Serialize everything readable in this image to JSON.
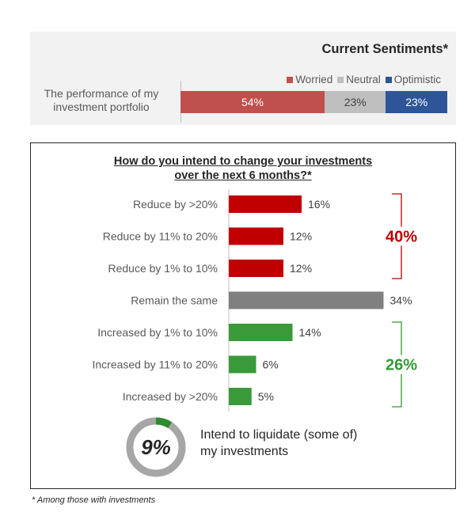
{
  "top": {
    "title": "Current Sentiments*",
    "row_label_line1": "The performance of my",
    "row_label_line2": "investment portfolio",
    "legend": [
      {
        "label": "Worried",
        "color": "#c0504d"
      },
      {
        "label": "Neutral",
        "color": "#bfbfbf"
      },
      {
        "label": "Optimistic",
        "color": "#2e5597"
      }
    ],
    "segments": [
      {
        "name": "Worried",
        "value": 54,
        "label": "54%",
        "color": "#c0504d",
        "text_color": "#ffffff"
      },
      {
        "name": "Neutral",
        "value": 23,
        "label": "23%",
        "color": "#bfbfbf",
        "text_color": "#404040"
      },
      {
        "name": "Optimistic",
        "value": 23,
        "label": "23%",
        "color": "#2e5597",
        "text_color": "#ffffff"
      }
    ]
  },
  "question": {
    "line1": "How do you intend to change your investments",
    "line2": "over the next 6 months?*"
  },
  "chart_data": {
    "type": "bar",
    "orientation": "horizontal",
    "title": "How do you intend to change your investments over the next 6 months?*",
    "categories": [
      "Reduce by >20%",
      "Reduce by 11% to 20%",
      "Reduce by 1% to 10%",
      "Remain the same",
      "Increased by 1% to 10%",
      "Increased by 11% to 20%",
      "Increased by >20%"
    ],
    "values": [
      16,
      12,
      12,
      34,
      14,
      6,
      5
    ],
    "value_labels": [
      "16%",
      "12%",
      "12%",
      "34%",
      "14%",
      "6%",
      "5%"
    ],
    "colors": [
      "#c00000",
      "#c00000",
      "#c00000",
      "#808080",
      "#3a9a3a",
      "#3a9a3a",
      "#3a9a3a"
    ],
    "xlim": [
      0,
      40
    ],
    "groups": [
      {
        "label": "40%",
        "color": "#c00000",
        "from": 0,
        "to": 2
      },
      {
        "label": "26%",
        "color": "#339933",
        "from": 4,
        "to": 6
      }
    ]
  },
  "liquidate": {
    "value": 9,
    "label": "9%",
    "text_line1": "Intend to liquidate (some of)",
    "text_line2": "my investments",
    "ring_color": "#a6a6a6",
    "accent_color": "#2e8b2e"
  },
  "footnote": "* Among those with investments"
}
